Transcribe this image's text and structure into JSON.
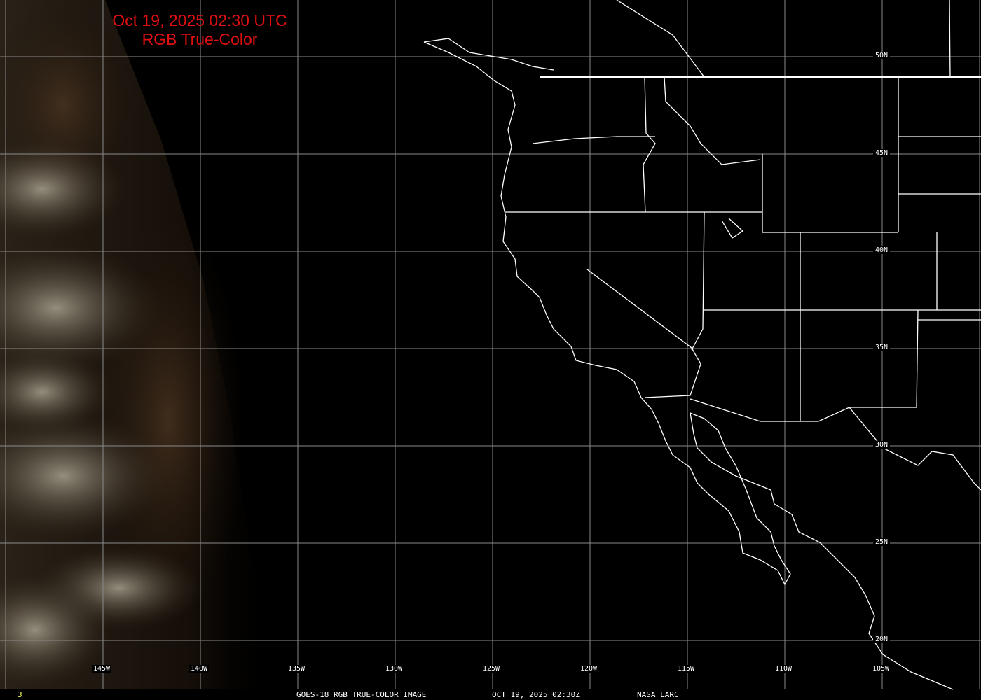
{
  "title": {
    "line1": "Oct 19, 2025 02:30 UTC",
    "line2": "RGB True-Color"
  },
  "longitude_labels": [
    "145W",
    "140W",
    "135W",
    "130W",
    "125W",
    "120W",
    "115W",
    "110W",
    "105W"
  ],
  "latitude_labels": [
    "50N",
    "45N",
    "40N",
    "35N",
    "30N",
    "25N",
    "20N"
  ],
  "footer": {
    "frame_number": "3",
    "product": "GOES-18 RGB TRUE-COLOR IMAGE",
    "timestamp": "OCT 19, 2025 02:30Z",
    "credit": "NASA LARC"
  },
  "colors": {
    "title": "#e01010",
    "grid": "#8a8a8a",
    "boundaries": "#ffffff",
    "frame_number": "#ffff66"
  }
}
